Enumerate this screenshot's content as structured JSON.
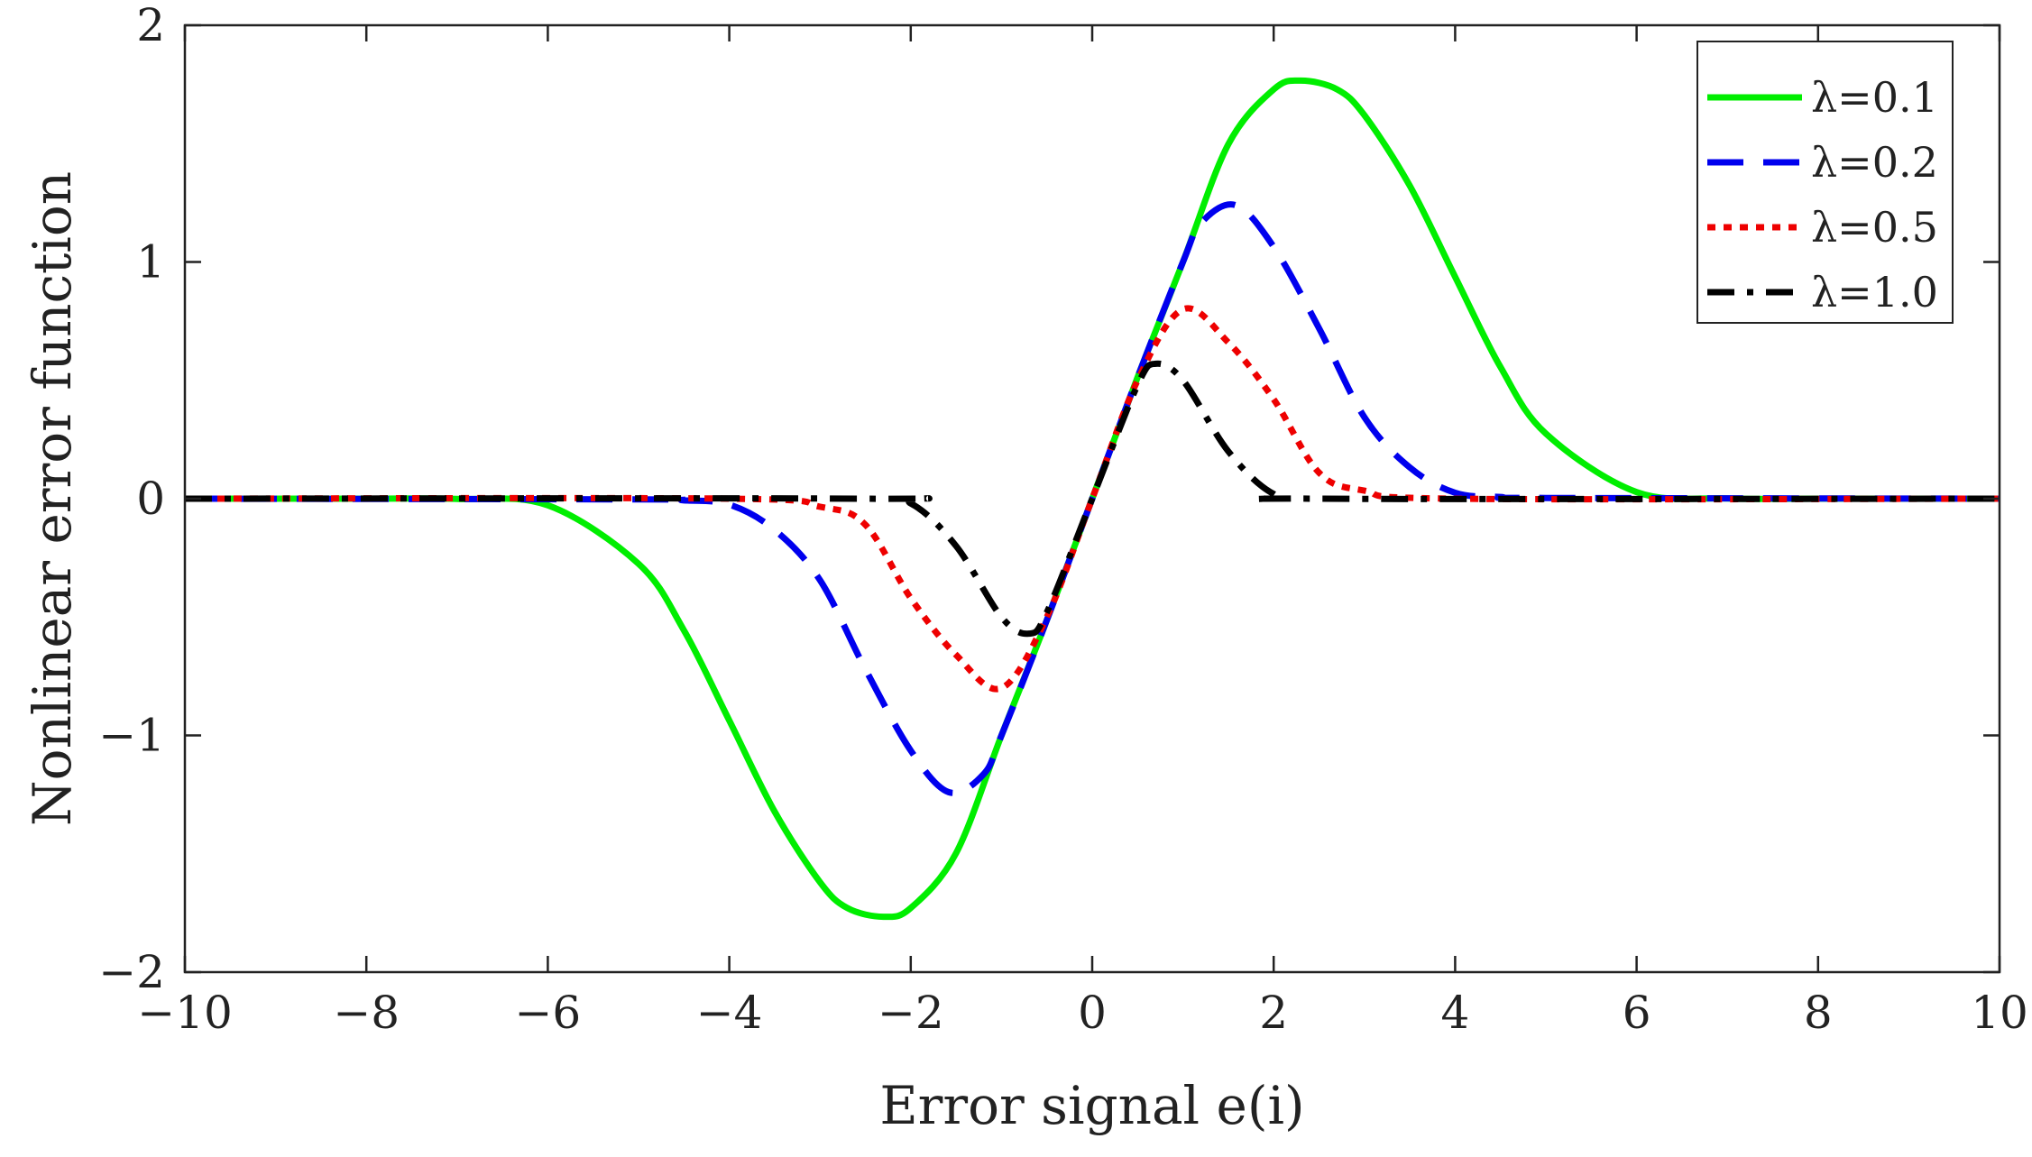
{
  "chart_data": {
    "type": "line",
    "title": "",
    "xlabel": "Error signal e(i)",
    "ylabel": "Nonlinear error function",
    "xlim": [
      -10,
      10
    ],
    "ylim": [
      -2,
      2
    ],
    "x_ticks": [
      -10,
      -8,
      -6,
      -4,
      -2,
      0,
      2,
      4,
      6,
      8,
      10
    ],
    "y_ticks": [
      -2,
      -1,
      0,
      1,
      2
    ],
    "x_tick_labels": [
      "−10",
      "−8",
      "−6",
      "−4",
      "−2",
      "0",
      "2",
      "4",
      "6",
      "8",
      "10"
    ],
    "y_tick_labels": [
      "−2",
      "−1",
      "0",
      "1",
      "2"
    ],
    "grid": false,
    "legend_position": "top-right",
    "series": [
      {
        "name": "λ=0.1",
        "color": "#00ee00",
        "style": "solid",
        "x": [
          -10,
          -8,
          -7,
          -6,
          -5,
          -4.5,
          -4,
          -3.5,
          -3,
          -2.7,
          -2.3,
          -2,
          -1.5,
          -1,
          -0.5,
          0,
          0.5,
          1,
          1.5,
          2,
          2.3,
          2.7,
          3,
          3.5,
          4,
          4.5,
          5,
          6,
          7,
          8,
          10
        ],
        "y": [
          0,
          0,
          -0.001,
          -0.028,
          -0.275,
          -0.556,
          -0.937,
          -1.322,
          -1.62,
          -1.729,
          -1.766,
          -1.729,
          -1.497,
          -1.0,
          -0.513,
          0,
          0.513,
          1.0,
          1.497,
          1.729,
          1.766,
          1.729,
          1.62,
          1.322,
          0.937,
          0.556,
          0.275,
          0.028,
          0.001,
          0,
          0
        ]
      },
      {
        "name": "λ=0.2",
        "color": "#0000ee",
        "style": "dashed",
        "x": [
          -10,
          -5,
          -4.5,
          -4,
          -3.5,
          -3,
          -2.5,
          -2,
          -1.58,
          -1.2,
          -1,
          -0.5,
          0,
          0.5,
          1,
          1.2,
          1.58,
          2,
          2.5,
          3,
          3.5,
          4,
          4.5,
          5,
          10
        ],
        "y": [
          0,
          -0.003,
          -0.007,
          -0.025,
          -0.132,
          -0.344,
          -0.72,
          -1.064,
          -1.24,
          -1.165,
          -1.0,
          -0.513,
          0,
          0.513,
          1.0,
          1.165,
          1.24,
          1.064,
          0.72,
          0.344,
          0.132,
          0.025,
          0.007,
          0.003,
          0
        ]
      },
      {
        "name": "λ=0.5",
        "color": "#ee0000",
        "style": "dotted",
        "x": [
          -10,
          -4,
          -3,
          -2.5,
          -2,
          -1.5,
          -1,
          -0.5,
          0,
          0.5,
          1,
          1.5,
          2,
          2.5,
          3,
          4,
          10
        ],
        "y": [
          0,
          0,
          -0.034,
          -0.11,
          -0.42,
          -0.66,
          -0.8,
          -0.5,
          0,
          0.5,
          0.8,
          0.66,
          0.42,
          0.11,
          0.034,
          0,
          0
        ]
      },
      {
        "name": "λ=1.0",
        "color": "#000000",
        "style": "dashdot",
        "x": [
          -10,
          -2.5,
          -2,
          -1.5,
          -1,
          -0.7,
          -0.5,
          0,
          0.5,
          0.7,
          1,
          1.5,
          2,
          2.5,
          10
        ],
        "y": [
          0,
          0,
          -0.02,
          -0.2,
          -0.5,
          -0.57,
          -0.48,
          0,
          0.48,
          0.57,
          0.5,
          0.2,
          0.02,
          0,
          0
        ]
      }
    ]
  }
}
